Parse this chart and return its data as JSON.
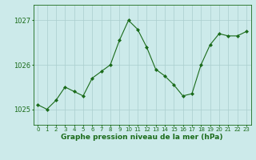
{
  "x": [
    0,
    1,
    2,
    3,
    4,
    5,
    6,
    7,
    8,
    9,
    10,
    11,
    12,
    13,
    14,
    15,
    16,
    17,
    18,
    19,
    20,
    21,
    22,
    23
  ],
  "y": [
    1025.1,
    1025.0,
    1025.2,
    1025.5,
    1025.4,
    1025.3,
    1025.7,
    1025.85,
    1026.0,
    1026.55,
    1027.0,
    1026.8,
    1026.4,
    1025.9,
    1025.75,
    1025.55,
    1025.3,
    1025.35,
    1026.0,
    1026.45,
    1026.7,
    1026.65,
    1026.65,
    1026.75
  ],
  "line_color": "#1a6b1a",
  "marker": "D",
  "marker_size": 2,
  "bg_color": "#cceaea",
  "grid_color": "#aacece",
  "xlabel": "Graphe pression niveau de la mer (hPa)",
  "xlabel_color": "#1a6b1a",
  "tick_color": "#1a6b1a",
  "axis_color": "#1a6b1a",
  "yticks": [
    1025,
    1026,
    1027
  ],
  "ylim": [
    1024.65,
    1027.35
  ],
  "xlim": [
    -0.5,
    23.5
  ],
  "xlabel_fontsize": 6.5,
  "tick_fontsize": 6,
  "xtick_fontsize": 5
}
